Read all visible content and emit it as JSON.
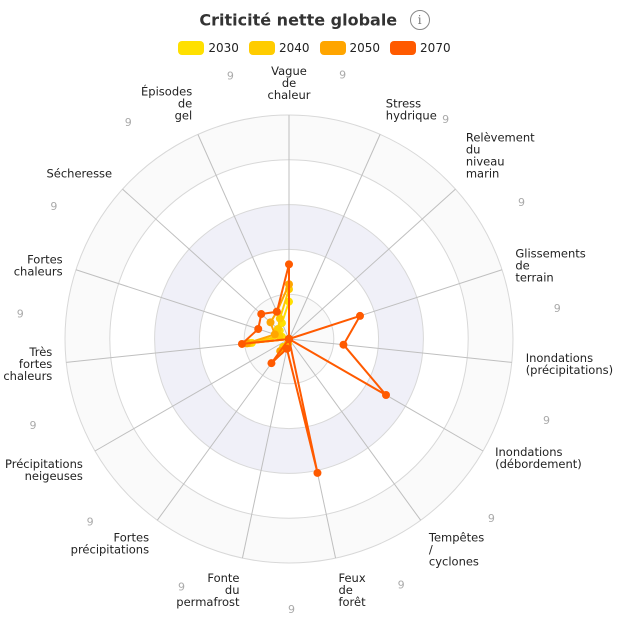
{
  "chart_data": {
    "type": "radar",
    "title": "Criticité nette globale",
    "info_icon": "info-icon",
    "axes": [
      {
        "label": [
          "Vague",
          "de",
          "chaleur"
        ]
      },
      {
        "label": [
          "Stress",
          "hydrique"
        ]
      },
      {
        "label": [
          "Relèvement",
          "du",
          "niveau",
          "marin"
        ]
      },
      {
        "label": [
          "Glissements",
          "de",
          "terrain"
        ]
      },
      {
        "label": [
          "Inondations",
          "(précipitations)"
        ]
      },
      {
        "label": [
          "Inondations",
          "(débordement)"
        ]
      },
      {
        "label": [
          "Tempêtes",
          "/",
          "cyclones"
        ]
      },
      {
        "label": [
          "Feux",
          "de",
          "forêt"
        ]
      },
      {
        "label": [
          "Fonte",
          "du",
          "permafrost"
        ]
      },
      {
        "label": [
          "Fortes",
          "précipitations"
        ]
      },
      {
        "label": [
          "Précipitations",
          "neigeuses"
        ]
      },
      {
        "label": [
          "Très",
          "fortes",
          "chaleurs"
        ]
      },
      {
        "label": [
          "Fortes",
          "chaleurs"
        ]
      },
      {
        "label": [
          "Sécheresse"
        ]
      },
      {
        "label": [
          "Épisodes",
          "de",
          "gel"
        ]
      }
    ],
    "max_labels": [
      "9",
      "9",
      "9",
      "9",
      "9",
      "9",
      "9",
      "9",
      "9",
      "9",
      "9",
      "9",
      "9",
      "9",
      "9"
    ],
    "rmax": 9,
    "series": [
      {
        "name": "2030",
        "color": "#ffe000",
        "values": [
          1.5,
          0,
          0,
          0,
          0,
          0,
          0,
          0,
          0.2,
          0.4,
          0,
          1.5,
          0.3,
          0.5,
          0.7
        ]
      },
      {
        "name": "2040",
        "color": "#ffcc00",
        "values": [
          2.0,
          0,
          0,
          0,
          0,
          0,
          0,
          0,
          0.2,
          0.4,
          0,
          1.6,
          0.4,
          0.6,
          0.9
        ]
      },
      {
        "name": "2050",
        "color": "#ffa500",
        "values": [
          2.2,
          0,
          0,
          0,
          0,
          0,
          0,
          0,
          0.3,
          0.6,
          0,
          1.7,
          0.6,
          1.0,
          1.2
        ]
      },
      {
        "name": "2070",
        "color": "#ff5a00",
        "values": [
          3.0,
          0,
          0,
          3.0,
          2.2,
          4.5,
          0,
          5.5,
          0.4,
          1.2,
          0,
          1.9,
          1.3,
          1.5,
          1.2
        ]
      }
    ]
  }
}
